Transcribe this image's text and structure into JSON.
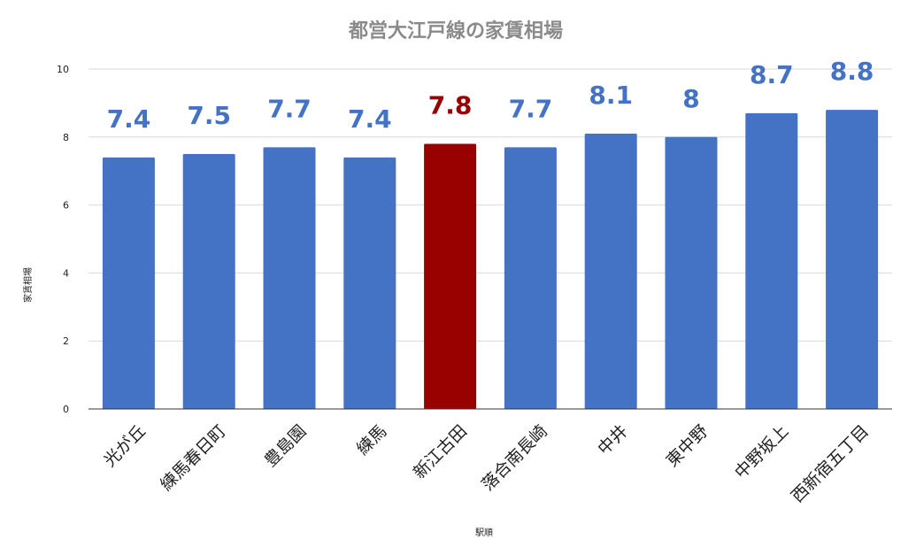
{
  "chart_data": {
    "type": "bar",
    "title": "都営大江戸線の家賃相場",
    "xlabel": "駅順",
    "ylabel": "家賃相場",
    "ylim": [
      0,
      10
    ],
    "yticks": [
      0,
      2,
      4,
      6,
      8,
      10
    ],
    "grid": true,
    "legend": "none",
    "categories": [
      "光が丘",
      "練馬春日町",
      "豊島園",
      "練馬",
      "新江古田",
      "落合南長崎",
      "中井",
      "東中野",
      "中野坂上",
      "西新宿五丁目"
    ],
    "values": [
      7.4,
      7.5,
      7.7,
      7.4,
      7.8,
      7.7,
      8.1,
      8,
      8.7,
      8.8
    ],
    "value_labels": [
      "7.4",
      "7.5",
      "7.7",
      "7.4",
      "7.8",
      "7.7",
      "8.1",
      "8",
      "8.7",
      "8.8"
    ],
    "highlight_index": 4,
    "colors": {
      "bar": "#4472c4",
      "highlight": "#990000",
      "label": "#4472c4",
      "highlight_label": "#990000",
      "grid": "#d9d9d9",
      "axis": "#333333",
      "title": "#8a8a8a"
    }
  }
}
